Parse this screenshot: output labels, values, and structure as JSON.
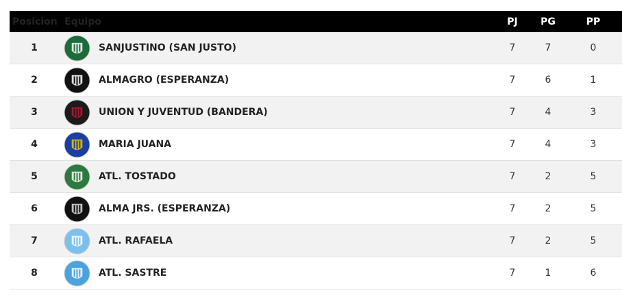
{
  "table": {
    "header": [
      "Posicion",
      "Equipo",
      "PJ",
      "PG",
      "PP"
    ],
    "rows": [
      [
        1,
        "SANJUSTINO (SAN JUSTO)",
        7,
        7,
        0
      ],
      [
        2,
        "ALMAGRO (ESPERANZA)",
        7,
        6,
        1
      ],
      [
        3,
        "UNION Y JUVENTUD (BANDERA)",
        7,
        4,
        3
      ],
      [
        4,
        "MARIA JUANA",
        7,
        4,
        3
      ],
      [
        5,
        "ATL. TOSTADO",
        7,
        2,
        5
      ],
      [
        6,
        "ALMA JRS. (ESPERANZA)",
        7,
        2,
        5
      ],
      [
        7,
        "ATL. RAFAELA",
        7,
        2,
        5
      ],
      [
        8,
        "ATL. SASTRE",
        7,
        1,
        6
      ]
    ]
  }
}
